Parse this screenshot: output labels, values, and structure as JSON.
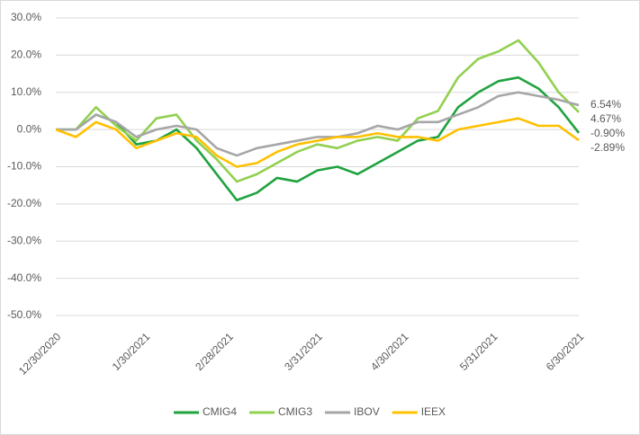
{
  "chart_data": {
    "type": "line",
    "x": [
      "2020-12-30",
      "2021-01-06",
      "2021-01-13",
      "2021-01-20",
      "2021-01-27",
      "2021-02-03",
      "2021-02-10",
      "2021-02-17",
      "2021-02-24",
      "2021-03-03",
      "2021-03-10",
      "2021-03-17",
      "2021-03-24",
      "2021-03-31",
      "2021-04-07",
      "2021-04-14",
      "2021-04-21",
      "2021-04-28",
      "2021-05-05",
      "2021-05-12",
      "2021-05-19",
      "2021-05-26",
      "2021-06-02",
      "2021-06-09",
      "2021-06-16",
      "2021-06-23",
      "2021-06-30"
    ],
    "xlim": [
      "2020-12-30",
      "2021-06-30"
    ],
    "xticks": [
      {
        "value": "2020-12-30",
        "label": "12/30/2020"
      },
      {
        "value": "2021-01-30",
        "label": "1/30/2021"
      },
      {
        "value": "2021-02-28",
        "label": "2/28/2021"
      },
      {
        "value": "2021-03-31",
        "label": "3/31/2021"
      },
      {
        "value": "2021-04-30",
        "label": "4/30/2021"
      },
      {
        "value": "2021-05-31",
        "label": "5/31/2021"
      },
      {
        "value": "2021-06-30",
        "label": "6/30/2021"
      }
    ],
    "ylim": [
      -50,
      30
    ],
    "yticks": [
      {
        "value": -50,
        "label": "-50.0%"
      },
      {
        "value": -40,
        "label": "-40.0%"
      },
      {
        "value": -30,
        "label": "-30.0%"
      },
      {
        "value": -20,
        "label": "-20.0%"
      },
      {
        "value": -10,
        "label": "-10.0%"
      },
      {
        "value": 0,
        "label": "0.0%"
      },
      {
        "value": 10,
        "label": "10.0%"
      },
      {
        "value": 20,
        "label": "20.0%"
      },
      {
        "value": 30,
        "label": "30.0%"
      }
    ],
    "grid": true,
    "legend": "bottom",
    "series": [
      {
        "name": "CMIG4",
        "color": "#1fa33f",
        "values": [
          0,
          0,
          4,
          2,
          -4,
          -3,
          0,
          -5,
          -12,
          -19,
          -17,
          -13,
          -14,
          -11,
          -10,
          -12,
          -9,
          -6,
          -3,
          -2,
          6,
          10,
          13,
          14,
          11,
          6,
          -0.9
        ],
        "value_labels": [
          null,
          null,
          null,
          null,
          null,
          null,
          null,
          null,
          null,
          null,
          null,
          null,
          null,
          null,
          null,
          null,
          null,
          null,
          null,
          null,
          null,
          null,
          null,
          null,
          null,
          null,
          "-0.90%"
        ]
      },
      {
        "name": "CMIG3",
        "color": "#92d050",
        "values": [
          0,
          0,
          6,
          1,
          -3,
          3,
          4,
          -3,
          -8,
          -14,
          -12,
          -9,
          -6,
          -4,
          -5,
          -3,
          -2,
          -3,
          3,
          5,
          14,
          19,
          21,
          24,
          18,
          10,
          4.67
        ],
        "value_labels": [
          null,
          null,
          null,
          null,
          null,
          null,
          null,
          null,
          null,
          null,
          null,
          null,
          null,
          null,
          null,
          null,
          null,
          null,
          null,
          null,
          null,
          null,
          null,
          null,
          null,
          null,
          "4.67%"
        ]
      },
      {
        "name": "IBOV",
        "color": "#a6a6a6",
        "values": [
          0,
          0,
          4,
          2,
          -2,
          0,
          1,
          0,
          -5,
          -7,
          -5,
          -4,
          -3,
          -2,
          -2,
          -1,
          1,
          0,
          2,
          2,
          4,
          6,
          9,
          10,
          9,
          8,
          6.54
        ],
        "value_labels": [
          null,
          null,
          null,
          null,
          null,
          null,
          null,
          null,
          null,
          null,
          null,
          null,
          null,
          null,
          null,
          null,
          null,
          null,
          null,
          null,
          null,
          null,
          null,
          null,
          null,
          null,
          "6.54%"
        ]
      },
      {
        "name": "IEEX",
        "color": "#ffc000",
        "values": [
          0,
          -2,
          2,
          0,
          -5,
          -3,
          -1,
          -2,
          -7,
          -10,
          -9,
          -6,
          -4,
          -3,
          -2,
          -2,
          -1,
          -2,
          -2,
          -3,
          0,
          1,
          2,
          3,
          1,
          1,
          -2.89
        ],
        "value_labels": [
          null,
          null,
          null,
          null,
          null,
          null,
          null,
          null,
          null,
          null,
          null,
          null,
          null,
          null,
          null,
          null,
          null,
          null,
          null,
          null,
          null,
          null,
          null,
          null,
          null,
          null,
          "-2.89%"
        ]
      }
    ]
  }
}
